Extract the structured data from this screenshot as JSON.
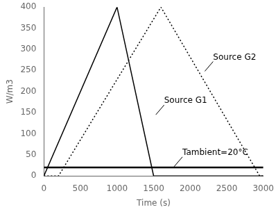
{
  "chart_data": {
    "type": "line",
    "xlabel": "Time (s)",
    "ylabel": "W/m3",
    "xlim": [
      0,
      3000
    ],
    "ylim": [
      0,
      400
    ],
    "xticks": [
      0,
      500,
      1000,
      1500,
      2000,
      2500,
      3000
    ],
    "yticks": [
      0,
      50,
      100,
      150,
      200,
      250,
      300,
      350,
      400
    ],
    "grid": false,
    "series": [
      {
        "name": "Source G1",
        "x": [
          0,
          1000,
          1500,
          3000
        ],
        "values": [
          0,
          400,
          0,
          0
        ],
        "color": "black",
        "line_style": "solid"
      },
      {
        "name": "Source G2",
        "x": [
          0,
          200,
          1600,
          2950,
          3000
        ],
        "values": [
          0,
          0,
          400,
          0,
          0
        ],
        "color": "black",
        "line_style": "dotted"
      }
    ],
    "hline": {
      "name": "Tambient",
      "y": 20,
      "color": "black",
      "line_style": "solid"
    },
    "annotations": [
      {
        "text": "Source G1",
        "x": 1530,
        "y": 145
      },
      {
        "text": "Source G2",
        "x": 2200,
        "y": 248
      },
      {
        "text": "Tambient=20°C",
        "x": 1780,
        "y": 22
      }
    ]
  }
}
